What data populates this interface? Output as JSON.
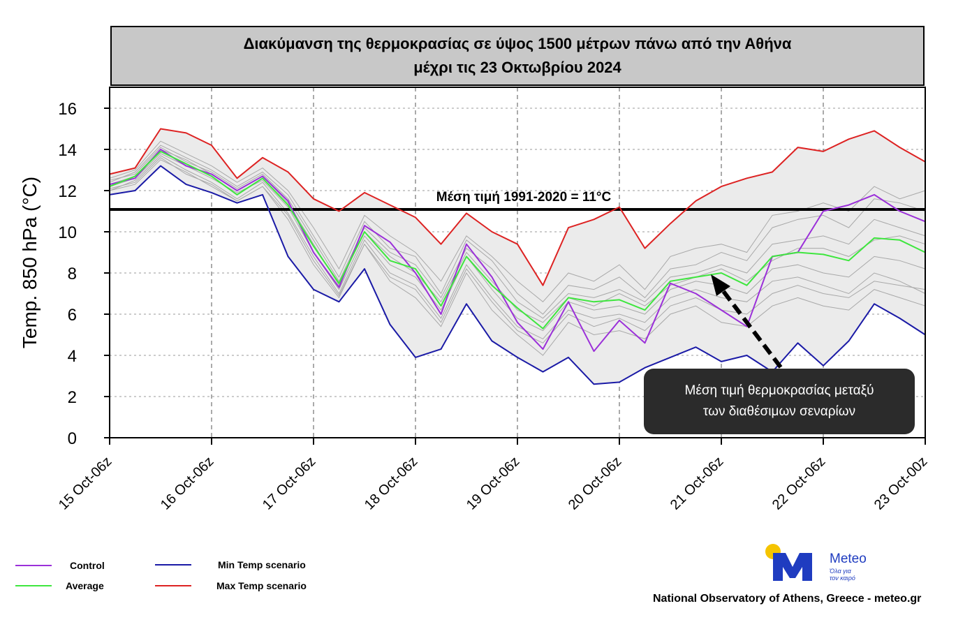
{
  "title": {
    "line1": "Διακύμανση της θερμοκρασίας σε ύψος 1500 μέτρων πάνω από την Αθήνα",
    "line2": "μέχρι τις 23 Οκτωβρίου 2024"
  },
  "mean_label": "Μέση τιμή 1991-2020 = 11°C",
  "callout": {
    "line1": "Μέση τιμή θερμοκρασίας μεταξύ",
    "line2": "των διαθέσιμων σεναρίων"
  },
  "legend": {
    "control": "Control",
    "average": "Average",
    "min": "Min Temp scenario",
    "max": "Max Temp scenario"
  },
  "credit": "National Observatory of Athens, Greece - meteo.gr",
  "logo": {
    "name": "Meteo",
    "tagline1": "Όλα για",
    "tagline2": "τον καιρό"
  },
  "colors": {
    "control": "#9b30d9",
    "average": "#3ee63e",
    "min": "#1a1aa6",
    "max": "#dd2222",
    "ensemble": "#a8a8a8",
    "band": "#ebebeb"
  },
  "chart_data": {
    "type": "line",
    "ylabel": "Temp. 850 hPa (°C)",
    "ylim": [
      0,
      17
    ],
    "yticks": [
      0,
      2,
      4,
      6,
      8,
      10,
      12,
      14,
      16
    ],
    "xticks": [
      "15 Oct-06z",
      "16 Oct-06z",
      "17 Oct-06z",
      "18 Oct-06z",
      "19 Oct-06z",
      "20 Oct-06z",
      "21 Oct-06z",
      "22 Oct-06z",
      "23 Oct-00z"
    ],
    "x_hours": [
      0,
      6,
      12,
      18,
      24,
      30,
      36,
      42,
      48,
      54,
      60,
      66,
      72,
      78,
      84,
      90,
      96,
      102,
      108,
      114,
      120,
      126,
      132,
      138,
      144,
      150,
      156,
      162,
      168,
      174,
      180,
      186,
      192
    ],
    "reference_line": 11,
    "series": [
      {
        "name": "Control",
        "values": [
          12.3,
          12.6,
          14.0,
          13.2,
          12.8,
          12.0,
          12.7,
          11.5,
          9.0,
          7.3,
          10.3,
          9.5,
          8.0,
          6.0,
          9.4,
          7.8,
          5.6,
          4.3,
          6.6,
          4.2,
          5.7,
          4.6,
          7.5,
          7.0,
          6.2,
          5.4,
          8.8,
          9.0,
          11.0,
          11.3,
          11.8,
          11.0,
          10.5
        ]
      },
      {
        "name": "Average",
        "values": [
          12.2,
          12.7,
          13.9,
          13.3,
          12.7,
          11.8,
          12.6,
          11.3,
          9.3,
          7.5,
          10.0,
          8.6,
          8.2,
          6.4,
          8.8,
          7.4,
          6.3,
          5.3,
          6.8,
          6.6,
          6.7,
          6.2,
          7.6,
          7.8,
          8.0,
          7.4,
          8.8,
          9.0,
          8.9,
          8.6,
          9.7,
          9.6,
          9.0
        ]
      },
      {
        "name": "Min Temp scenario",
        "values": [
          11.8,
          12.0,
          13.2,
          12.3,
          11.9,
          11.4,
          11.8,
          8.8,
          7.2,
          6.6,
          8.2,
          5.5,
          3.9,
          4.3,
          6.5,
          4.7,
          3.9,
          3.2,
          3.9,
          2.6,
          2.7,
          3.4,
          3.9,
          4.4,
          3.7,
          4.0,
          3.2,
          4.6,
          3.5,
          4.7,
          6.5,
          5.8,
          5.0
        ]
      },
      {
        "name": "Max Temp scenario",
        "values": [
          12.8,
          13.1,
          15.0,
          14.8,
          14.2,
          12.6,
          13.6,
          12.9,
          11.6,
          11.0,
          11.9,
          11.3,
          10.7,
          9.4,
          10.9,
          10.0,
          9.4,
          7.4,
          10.2,
          10.6,
          11.2,
          9.2,
          10.4,
          11.5,
          12.2,
          12.6,
          12.9,
          14.1,
          13.9,
          14.5,
          14.9,
          14.1,
          13.4
        ]
      }
    ],
    "ensemble_members": [
      [
        12.4,
        12.9,
        14.2,
        13.6,
        13.0,
        12.2,
        12.9,
        11.8,
        9.8,
        7.8,
        10.5,
        9.2,
        8.8,
        7.0,
        9.6,
        8.6,
        7.0,
        6.0,
        7.4,
        7.2,
        7.8,
        6.8,
        8.2,
        8.4,
        9.0,
        8.6,
        10.2,
        10.6,
        10.8,
        10.2,
        11.6,
        11.4,
        11.0
      ],
      [
        12.0,
        12.5,
        13.7,
        13.0,
        12.4,
        11.6,
        12.4,
        10.9,
        8.8,
        7.0,
        9.6,
        8.0,
        7.4,
        5.8,
        8.4,
        6.8,
        5.4,
        4.8,
        6.2,
        5.8,
        6.0,
        5.6,
        6.8,
        7.2,
        6.8,
        6.6,
        7.6,
        7.8,
        7.4,
        7.0,
        8.0,
        7.6,
        7.0
      ],
      [
        12.6,
        13.0,
        14.4,
        13.8,
        13.2,
        12.4,
        13.1,
        12.0,
        10.2,
        8.2,
        10.8,
        9.8,
        9.0,
        7.6,
        9.8,
        8.8,
        7.6,
        6.6,
        8.0,
        7.6,
        8.4,
        7.2,
        8.8,
        9.2,
        9.4,
        9.0,
        10.8,
        11.0,
        11.4,
        11.0,
        12.2,
        11.6,
        12.0
      ],
      [
        12.1,
        12.4,
        13.6,
        12.8,
        12.3,
        11.5,
        12.2,
        10.6,
        8.4,
        6.8,
        9.4,
        7.6,
        6.8,
        5.4,
        8.0,
        6.2,
        5.0,
        4.0,
        5.6,
        5.0,
        5.2,
        4.8,
        6.0,
        6.4,
        5.6,
        5.4,
        6.4,
        6.8,
        6.4,
        6.2,
        7.2,
        6.8,
        6.4
      ],
      [
        12.5,
        12.8,
        14.1,
        13.4,
        12.9,
        12.1,
        12.8,
        11.6,
        9.6,
        7.6,
        10.2,
        9.0,
        8.4,
        6.8,
        9.2,
        8.2,
        6.6,
        5.8,
        7.0,
        6.8,
        7.2,
        6.6,
        7.8,
        8.0,
        8.4,
        8.0,
        9.4,
        9.6,
        9.8,
        9.4,
        10.6,
        10.2,
        9.8
      ],
      [
        12.2,
        12.6,
        13.8,
        13.2,
        12.6,
        11.9,
        12.5,
        11.2,
        9.0,
        7.2,
        9.8,
        8.4,
        7.8,
        6.2,
        8.8,
        7.2,
        5.8,
        5.2,
        6.6,
        6.2,
        6.4,
        6.0,
        7.2,
        7.6,
        7.4,
        7.0,
        8.2,
        8.4,
        8.0,
        7.8,
        8.8,
        8.6,
        8.2
      ],
      [
        12.3,
        12.7,
        14.0,
        13.5,
        12.8,
        12.0,
        12.7,
        11.4,
        9.4,
        7.4,
        10.0,
        8.8,
        8.0,
        6.6,
        9.0,
        7.6,
        6.2,
        5.6,
        6.8,
        6.4,
        7.0,
        6.4,
        7.4,
        7.8,
        8.2,
        7.6,
        8.6,
        9.2,
        9.2,
        8.8,
        9.6,
        9.8,
        9.4
      ],
      [
        12.0,
        12.3,
        13.5,
        12.9,
        12.2,
        11.5,
        12.2,
        10.8,
        8.6,
        6.9,
        9.4,
        7.8,
        7.2,
        5.6,
        8.2,
        6.6,
        5.2,
        4.6,
        6.0,
        5.4,
        5.8,
        5.2,
        6.4,
        6.8,
        6.2,
        6.0,
        7.0,
        7.4,
        7.0,
        6.8,
        7.6,
        7.4,
        7.2
      ]
    ]
  }
}
